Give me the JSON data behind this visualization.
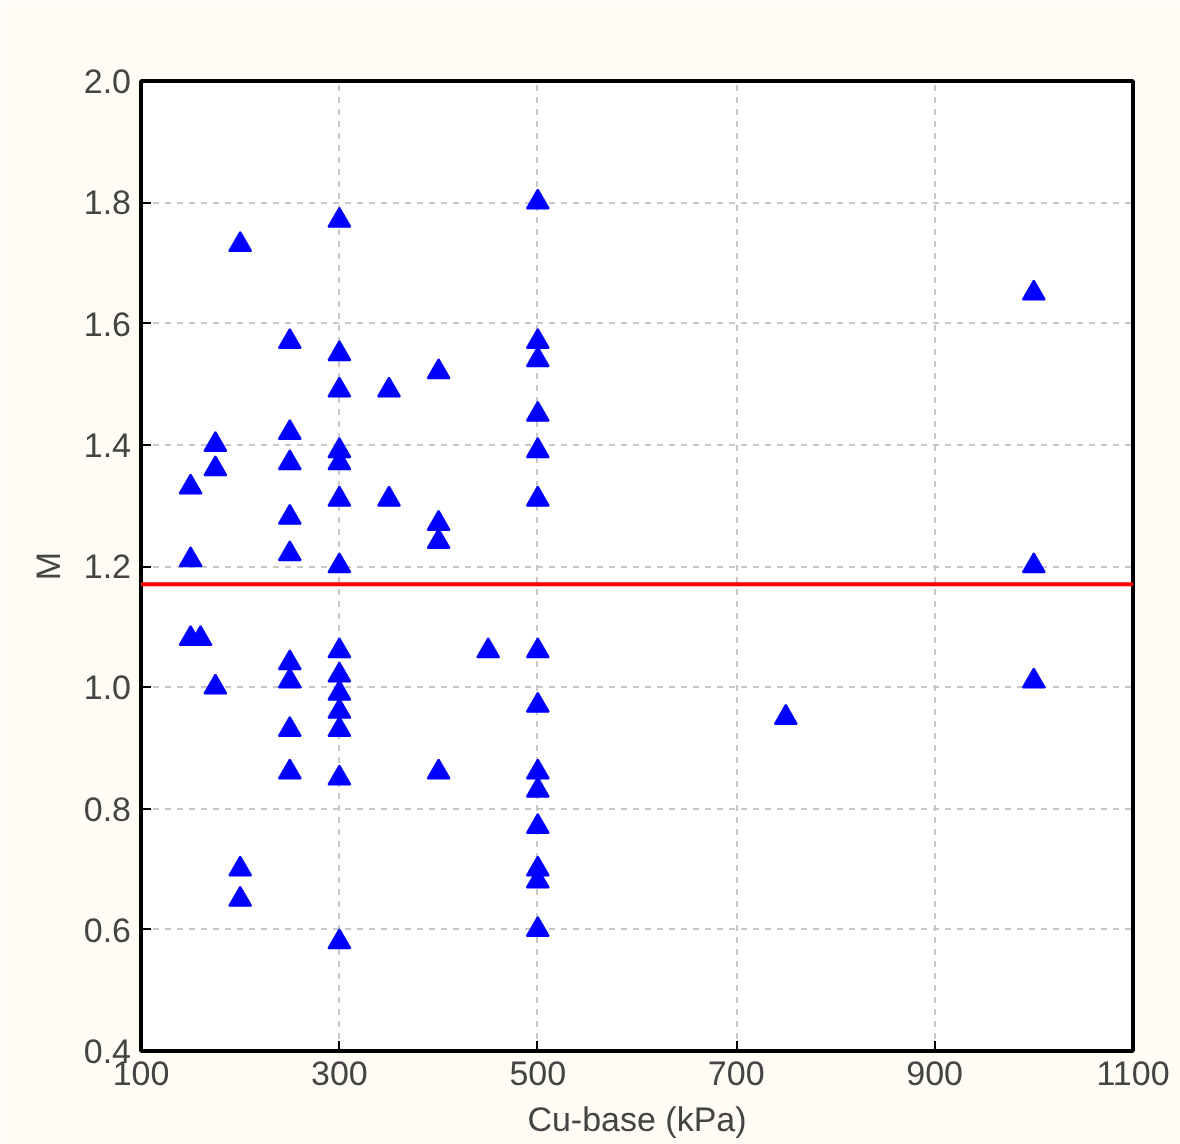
{
  "chart_data": {
    "type": "scatter",
    "xlabel": "Cu-base (kPa)",
    "ylabel": "M",
    "marker": "triangle",
    "grid": true,
    "xlim": [
      100,
      1100
    ],
    "xticks": [
      100,
      300,
      500,
      700,
      900,
      1100
    ],
    "ylim": [
      0.4,
      2.0
    ],
    "yticks": [
      0.4,
      0.6,
      0.8,
      {
        "value": 1.0,
        "label": "1.0"
      },
      1.2,
      1.4,
      1.6,
      1.8,
      {
        "value": 2.0,
        "label": "2.0"
      }
    ],
    "series": [
      {
        "color": "#0000ff",
        "x": [
          150,
          150,
          150,
          160,
          175,
          175,
          175,
          200,
          200,
          200,
          250,
          250,
          250,
          250,
          250,
          250,
          250,
          250,
          250,
          300,
          300,
          300,
          300,
          300,
          300,
          300,
          300,
          300,
          300,
          300,
          300,
          300,
          300,
          350,
          350,
          400,
          400,
          400,
          400,
          450,
          500,
          500,
          500,
          500,
          500,
          500,
          500,
          500,
          500,
          500,
          500,
          500,
          500,
          500,
          750,
          1000,
          1000,
          1000
        ],
        "values": [
          1.33,
          1.21,
          1.08,
          1.08,
          1.4,
          1.36,
          1.0,
          1.73,
          0.7,
          0.65,
          1.57,
          1.42,
          1.37,
          1.28,
          1.22,
          1.04,
          1.01,
          0.93,
          0.86,
          1.77,
          1.55,
          1.49,
          1.39,
          1.37,
          1.31,
          1.2,
          1.06,
          1.02,
          0.99,
          0.96,
          0.93,
          0.85,
          0.58,
          1.49,
          1.31,
          1.52,
          1.27,
          1.24,
          0.86,
          1.06,
          1.8,
          1.57,
          1.54,
          1.45,
          1.39,
          1.31,
          1.06,
          0.97,
          0.86,
          0.83,
          0.77,
          0.7,
          0.68,
          0.6,
          0.95,
          1.65,
          1.2,
          1.01
        ]
      }
    ],
    "ref_lines": [
      {
        "axis": "y",
        "value": 1.17,
        "color": "#ff0000"
      }
    ]
  }
}
